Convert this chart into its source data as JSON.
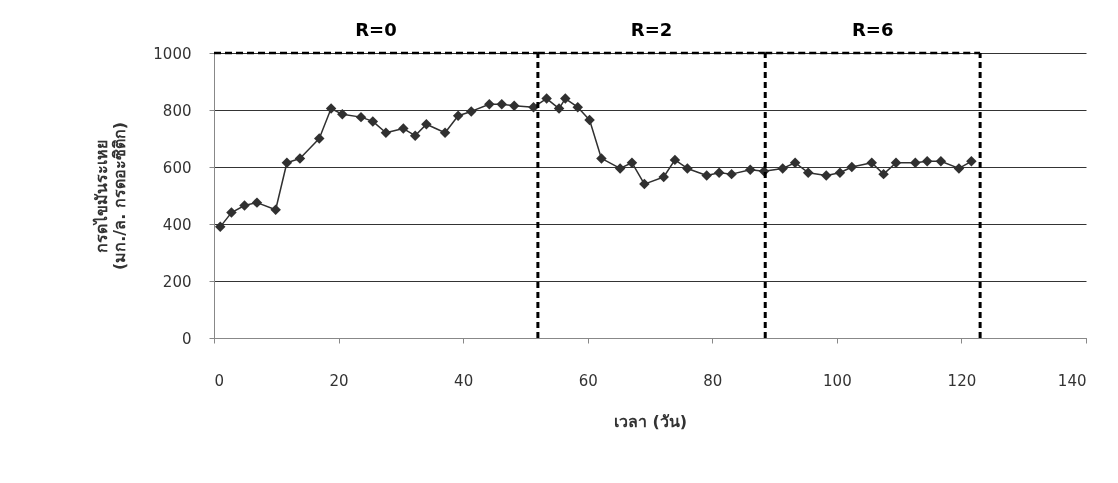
{
  "chart_data": {
    "type": "line",
    "xlabel": "เวลา (วัน)",
    "ylabel": "กรดไขมันระเหย\n(มก./ล. กรดอะซิติก)",
    "xlim": [
      0,
      140
    ],
    "xticks": [
      0,
      20,
      40,
      60,
      80,
      100,
      120,
      140
    ],
    "ylim": [
      0,
      1000
    ],
    "yticks": [
      0,
      200,
      400,
      600,
      800,
      1000
    ],
    "grid": "y",
    "marker": "diamond",
    "line_style": "solid",
    "series": [
      {
        "color": "#303030",
        "x": [
          1,
          2.8,
          4.9,
          6.9,
          9.9,
          11.7,
          13.8,
          16.9,
          18.8,
          20.6,
          23.6,
          25.5,
          27.6,
          30.4,
          32.3,
          34.1,
          37.1,
          39.2,
          41.3,
          44.2,
          46.2,
          48.2,
          51.3,
          53.4,
          55.4,
          56.4,
          58.4,
          60.3,
          62.2,
          65.2,
          67.1,
          69.1,
          72.2,
          74,
          76,
          79.1,
          81.1,
          83.1,
          86.1,
          88.3,
          91.3,
          93.3,
          95.4,
          98.3,
          100.5,
          102.4,
          105.6,
          107.5,
          109.5,
          112.6,
          114.5,
          116.7,
          119.6,
          121.6
        ],
        "values": [
          390,
          440,
          465,
          475,
          450,
          615,
          630,
          700,
          805,
          785,
          775,
          760,
          720,
          735,
          710,
          750,
          720,
          780,
          795,
          820,
          820,
          815,
          810,
          840,
          805,
          840,
          810,
          765,
          630,
          595,
          615,
          540,
          565,
          625,
          595,
          570,
          580,
          575,
          590,
          585,
          595,
          615,
          580,
          570,
          580,
          600,
          615,
          575,
          615,
          615,
          620,
          620,
          595,
          620
        ]
      }
    ],
    "ref_lines": [
      {
        "axis": "x",
        "value": 52,
        "color": "#000000",
        "line_style": "dashed"
      },
      {
        "axis": "x",
        "value": 88.5,
        "color": "#000000",
        "line_style": "dashed"
      },
      {
        "axis": "x",
        "value": 123,
        "color": "#000000",
        "line_style": "dashed"
      }
    ],
    "annotations": [
      "R=0",
      "R=2",
      "R=6"
    ]
  }
}
